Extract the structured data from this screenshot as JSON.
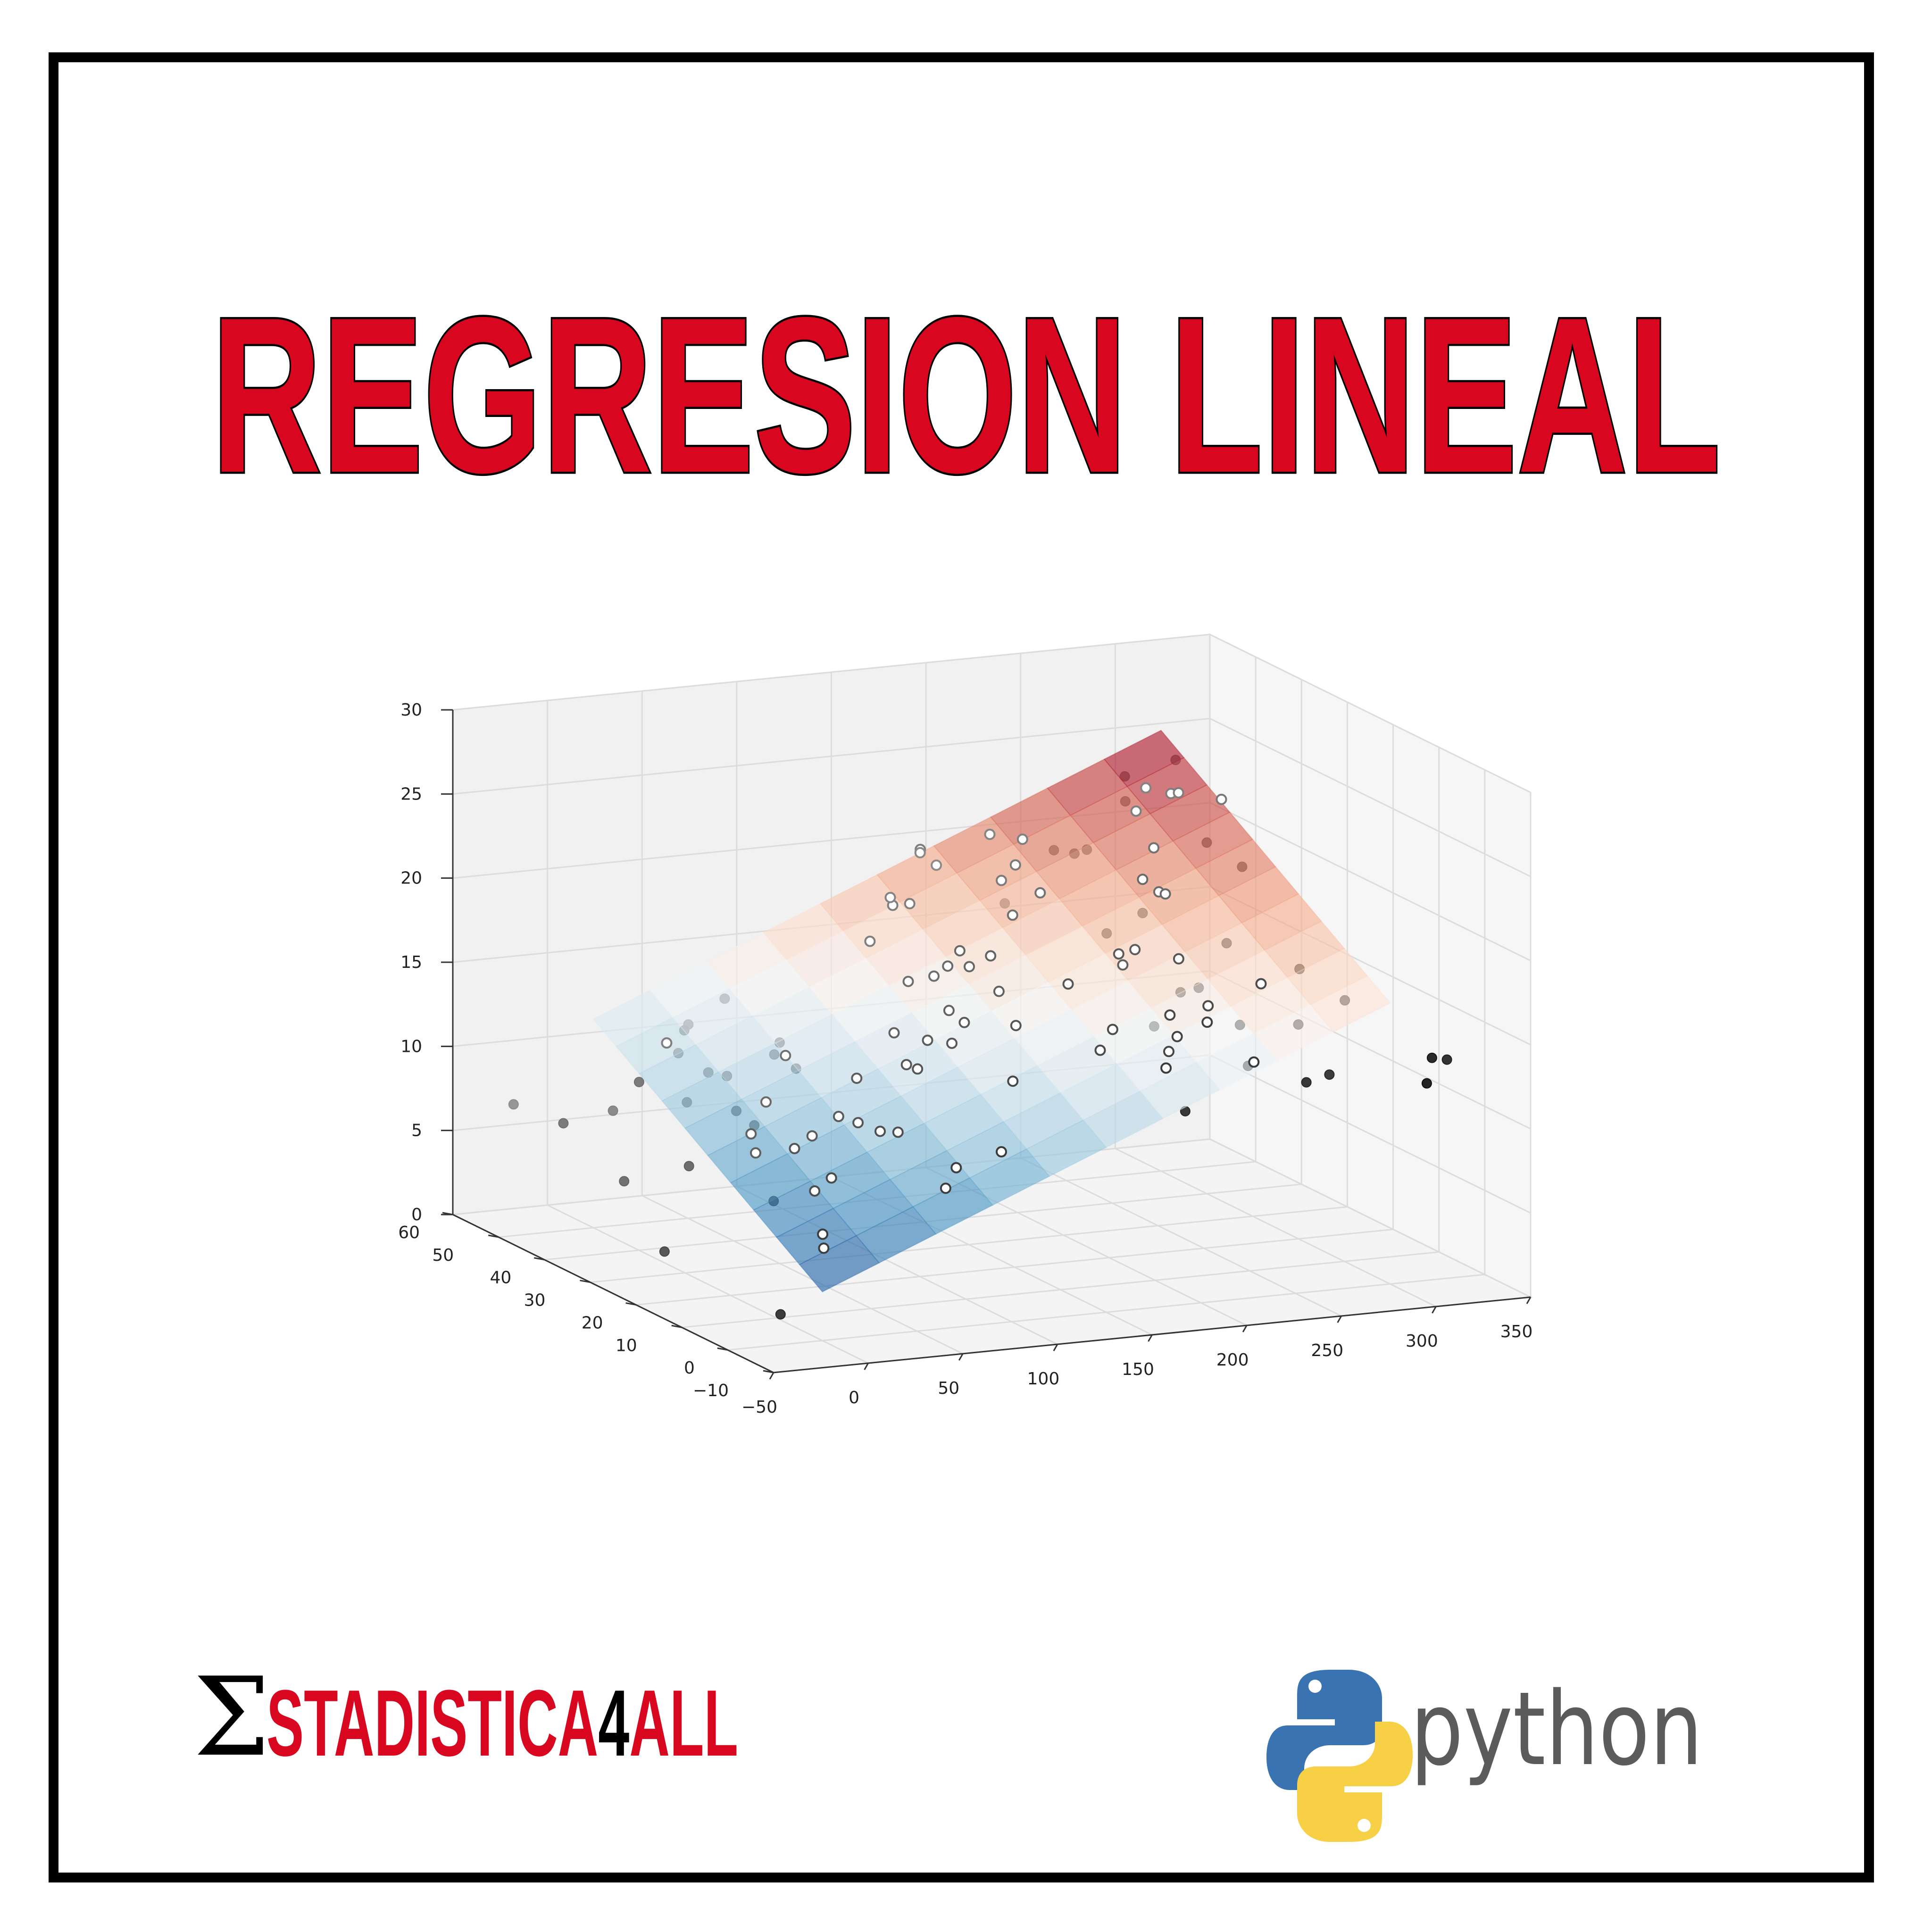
{
  "poster": {
    "title": "REGRESION LINEAL",
    "title_color": "#d9061f",
    "brand": {
      "sigma": "Σ",
      "name_red_part1": "STADISTICA",
      "name_black_part": "4",
      "name_red_part2": "ALL",
      "red": "#d9061f"
    },
    "python_word": "python",
    "python_colors": {
      "blue": "#3a73b1",
      "yellow": "#f7d045",
      "text": "#5b5b5b"
    }
  },
  "chart_data": {
    "type": "scatter3d-surface",
    "title": "",
    "x_ticks": [
      "−50",
      "0",
      "50",
      "100",
      "150",
      "200",
      "250",
      "300",
      "350"
    ],
    "y_ticks": [
      "−10",
      "0",
      "10",
      "20",
      "30",
      "40",
      "50",
      "60"
    ],
    "z_ticks": [
      "0",
      "5",
      "10",
      "15",
      "20",
      "25",
      "30"
    ],
    "xlim": [
      -50,
      350
    ],
    "ylim": [
      -10,
      60
    ],
    "zlim": [
      0,
      30
    ],
    "grid": true,
    "colormap": "RdBu_r",
    "surface": {
      "intercept": 2.9,
      "coef_x": 0.046,
      "coef_y": 0.19,
      "x_range": [
        0,
        300
      ],
      "y_range": [
        0,
        50
      ]
    },
    "points": [
      {
        "x": 230,
        "y": 40,
        "z": 21
      },
      {
        "x": 231,
        "y": 23,
        "z": 13
      },
      {
        "x": 44,
        "y": 39,
        "z": 10
      },
      {
        "x": 17,
        "y": 41,
        "z": 12
      },
      {
        "x": 151,
        "y": 41,
        "z": 22
      },
      {
        "x": 180,
        "y": 11,
        "z": 15
      },
      {
        "x": 8,
        "y": 49,
        "z": 7
      },
      {
        "x": 58,
        "y": 32,
        "z": 12
      },
      {
        "x": 8,
        "y": 3,
        "z": 5
      },
      {
        "x": 199,
        "y": 3,
        "z": 11
      },
      {
        "x": 67,
        "y": 37,
        "z": 12
      },
      {
        "x": 215,
        "y": 49,
        "z": 17
      },
      {
        "x": 24,
        "y": 16,
        "z": 9
      },
      {
        "x": 97,
        "y": 1,
        "z": 10
      },
      {
        "x": 205,
        "y": 20,
        "z": 18
      },
      {
        "x": 195,
        "y": 44,
        "z": 22
      },
      {
        "x": 67,
        "y": 49,
        "z": 13
      },
      {
        "x": 281,
        "y": 40,
        "z": 24
      },
      {
        "x": 69,
        "y": 21,
        "z": 12
      },
      {
        "x": 147,
        "y": 24,
        "z": 18
      },
      {
        "x": 218,
        "y": 28,
        "z": 18
      },
      {
        "x": 237,
        "y": 5,
        "z": 13
      },
      {
        "x": 13,
        "y": 16,
        "z": 6
      },
      {
        "x": 228,
        "y": 16,
        "z": 16
      },
      {
        "x": 62,
        "y": 13,
        "z": 10
      },
      {
        "x": 263,
        "y": 3,
        "z": 12
      },
      {
        "x": 143,
        "y": 27,
        "z": 17
      },
      {
        "x": 240,
        "y": 17,
        "z": 16
      },
      {
        "x": 248,
        "y": 29,
        "z": 20
      },
      {
        "x": 70,
        "y": 2,
        "z": 8
      },
      {
        "x": 292,
        "y": 29,
        "z": 21
      },
      {
        "x": 249,
        "y": 28,
        "z": 20
      },
      {
        "x": 286,
        "y": 14,
        "z": 17
      },
      {
        "x": 293,
        "y": 7,
        "z": 16
      },
      {
        "x": 18,
        "y": 22,
        "z": 8
      },
      {
        "x": 227,
        "y": 16,
        "z": 18
      },
      {
        "x": 57,
        "y": 20,
        "z": 10
      },
      {
        "x": 262,
        "y": 20,
        "z": 18
      },
      {
        "x": 5,
        "y": 2,
        "z": 6
      },
      {
        "x": 122,
        "y": 40,
        "z": 17
      },
      {
        "x": 112,
        "y": 18,
        "z": 14
      },
      {
        "x": 121,
        "y": 19,
        "z": 15
      },
      {
        "x": 89,
        "y": 16,
        "z": 13
      },
      {
        "x": 134,
        "y": 28,
        "z": 17
      },
      {
        "x": 255,
        "y": 33,
        "z": 22
      },
      {
        "x": 276,
        "y": 48,
        "z": 24
      },
      {
        "x": 203,
        "y": 8,
        "z": 16
      },
      {
        "x": 138,
        "y": 27,
        "z": 18
      },
      {
        "x": 36,
        "y": 45,
        "z": 12
      },
      {
        "x": 60,
        "y": 17,
        "z": 10
      },
      {
        "x": 202,
        "y": 6,
        "z": 15
      },
      {
        "x": 178,
        "y": 32,
        "z": 19
      },
      {
        "x": 118,
        "y": 30,
        "z": 16
      },
      {
        "x": 163,
        "y": 46,
        "z": 21
      },
      {
        "x": 32,
        "y": 32,
        "z": 9
      },
      {
        "x": 125,
        "y": 24,
        "z": 15
      },
      {
        "x": 269,
        "y": 45,
        "z": 23
      },
      {
        "x": 228,
        "y": 10,
        "z": 16
      },
      {
        "x": 256,
        "y": 10,
        "z": 17
      },
      {
        "x": 69,
        "y": 39,
        "z": 11
      },
      {
        "x": 96,
        "y": 24,
        "z": 14
      },
      {
        "x": 200,
        "y": 7,
        "z": 14
      },
      {
        "x": 134,
        "y": 31,
        "z": 16
      },
      {
        "x": 174,
        "y": 47,
        "z": 20
      },
      {
        "x": 205,
        "y": 41,
        "z": 22
      },
      {
        "x": 283,
        "y": 33,
        "z": 22
      },
      {
        "x": 78,
        "y": 3,
        "z": 9
      },
      {
        "x": 27,
        "y": 26,
        "z": 9
      },
      {
        "x": 171,
        "y": 10,
        "z": 14
      },
      {
        "x": 141,
        "y": 16,
        "z": 15
      },
      {
        "x": 120,
        "y": 8,
        "z": 13
      },
      {
        "x": 7,
        "y": 32,
        "z": 6
      },
      {
        "x": 237,
        "y": 28,
        "z": 21
      },
      {
        "x": 285,
        "y": 40,
        "z": 24
      },
      {
        "x": 228,
        "y": 0,
        "z": 14
      },
      {
        "x": 194,
        "y": 38,
        "z": 21
      },
      {
        "x": 29,
        "y": 10,
        "z": 8
      },
      {
        "x": 216,
        "y": 21,
        "z": 18
      },
      {
        "x": 69,
        "y": 12,
        "z": 10
      },
      {
        "x": 213,
        "y": 4,
        "z": 16
      },
      {
        "x": 195,
        "y": 33,
        "z": 20
      },
      {
        "x": 43,
        "y": 20,
        "z": 9
      },
      {
        "x": 143,
        "y": 40,
        "z": 19
      },
      {
        "x": 18,
        "y": 23,
        "z": 9
      },
      {
        "x": 239,
        "y": 41,
        "z": 21
      },
      {
        "x": 275,
        "y": 43,
        "z": 24
      },
      {
        "x": 266,
        "y": 6,
        "z": 15
      },
      {
        "x": 38,
        "y": 28,
        "z": 10
      },
      {
        "x": 184,
        "y": 1,
        "z": 14
      },
      {
        "x": 134,
        "y": 40,
        "z": 19
      },
      {
        "x": 237,
        "y": 28,
        "z": 19
      },
      {
        "x": 140,
        "y": 43,
        "z": 19
      },
      {
        "x": 104,
        "y": 20,
        "z": 14
      },
      {
        "x": 28,
        "y": 43,
        "z": 11
      },
      {
        "x": 149,
        "y": 23,
        "z": 16
      },
      {
        "x": 265,
        "y": 41,
        "z": 23
      },
      {
        "x": 25,
        "y": 12,
        "z": 7
      },
      {
        "x": 39,
        "y": 41,
        "z": 10
      },
      {
        "x": 18,
        "y": 37,
        "z": 9
      },
      {
        "x": 43,
        "y": 47,
        "z": 12
      },
      {
        "x": 189,
        "y": 39,
        "z": 20
      },
      {
        "x": 298,
        "y": 46,
        "z": 25
      },
      {
        "x": 0,
        "y": 40,
        "z": 10
      },
      {
        "x": 171,
        "y": 17,
        "z": 17
      },
      {
        "x": 224,
        "y": 42,
        "z": 21
      },
      {
        "x": 240,
        "y": 8,
        "z": 15
      },
      {
        "x": 66,
        "y": 33,
        "z": 11
      },
      {
        "x": 88,
        "y": 18,
        "z": 13
      },
      {
        "x": 298,
        "y": 36,
        "z": 24
      },
      {
        "x": 212,
        "y": 22,
        "z": 17
      },
      {
        "x": -20,
        "y": 35,
        "z": 5
      },
      {
        "x": -35,
        "y": 20,
        "z": 3
      },
      {
        "x": -30,
        "y": 55,
        "z": 7
      },
      {
        "x": -10,
        "y": 5,
        "z": 1
      },
      {
        "x": 310,
        "y": -5,
        "z": 14
      },
      {
        "x": 330,
        "y": 0,
        "z": 13
      },
      {
        "x": 300,
        "y": -8,
        "z": 13
      },
      {
        "x": 280,
        "y": 5,
        "z": 12
      },
      {
        "x": -40,
        "y": 40,
        "z": 8
      }
    ]
  }
}
